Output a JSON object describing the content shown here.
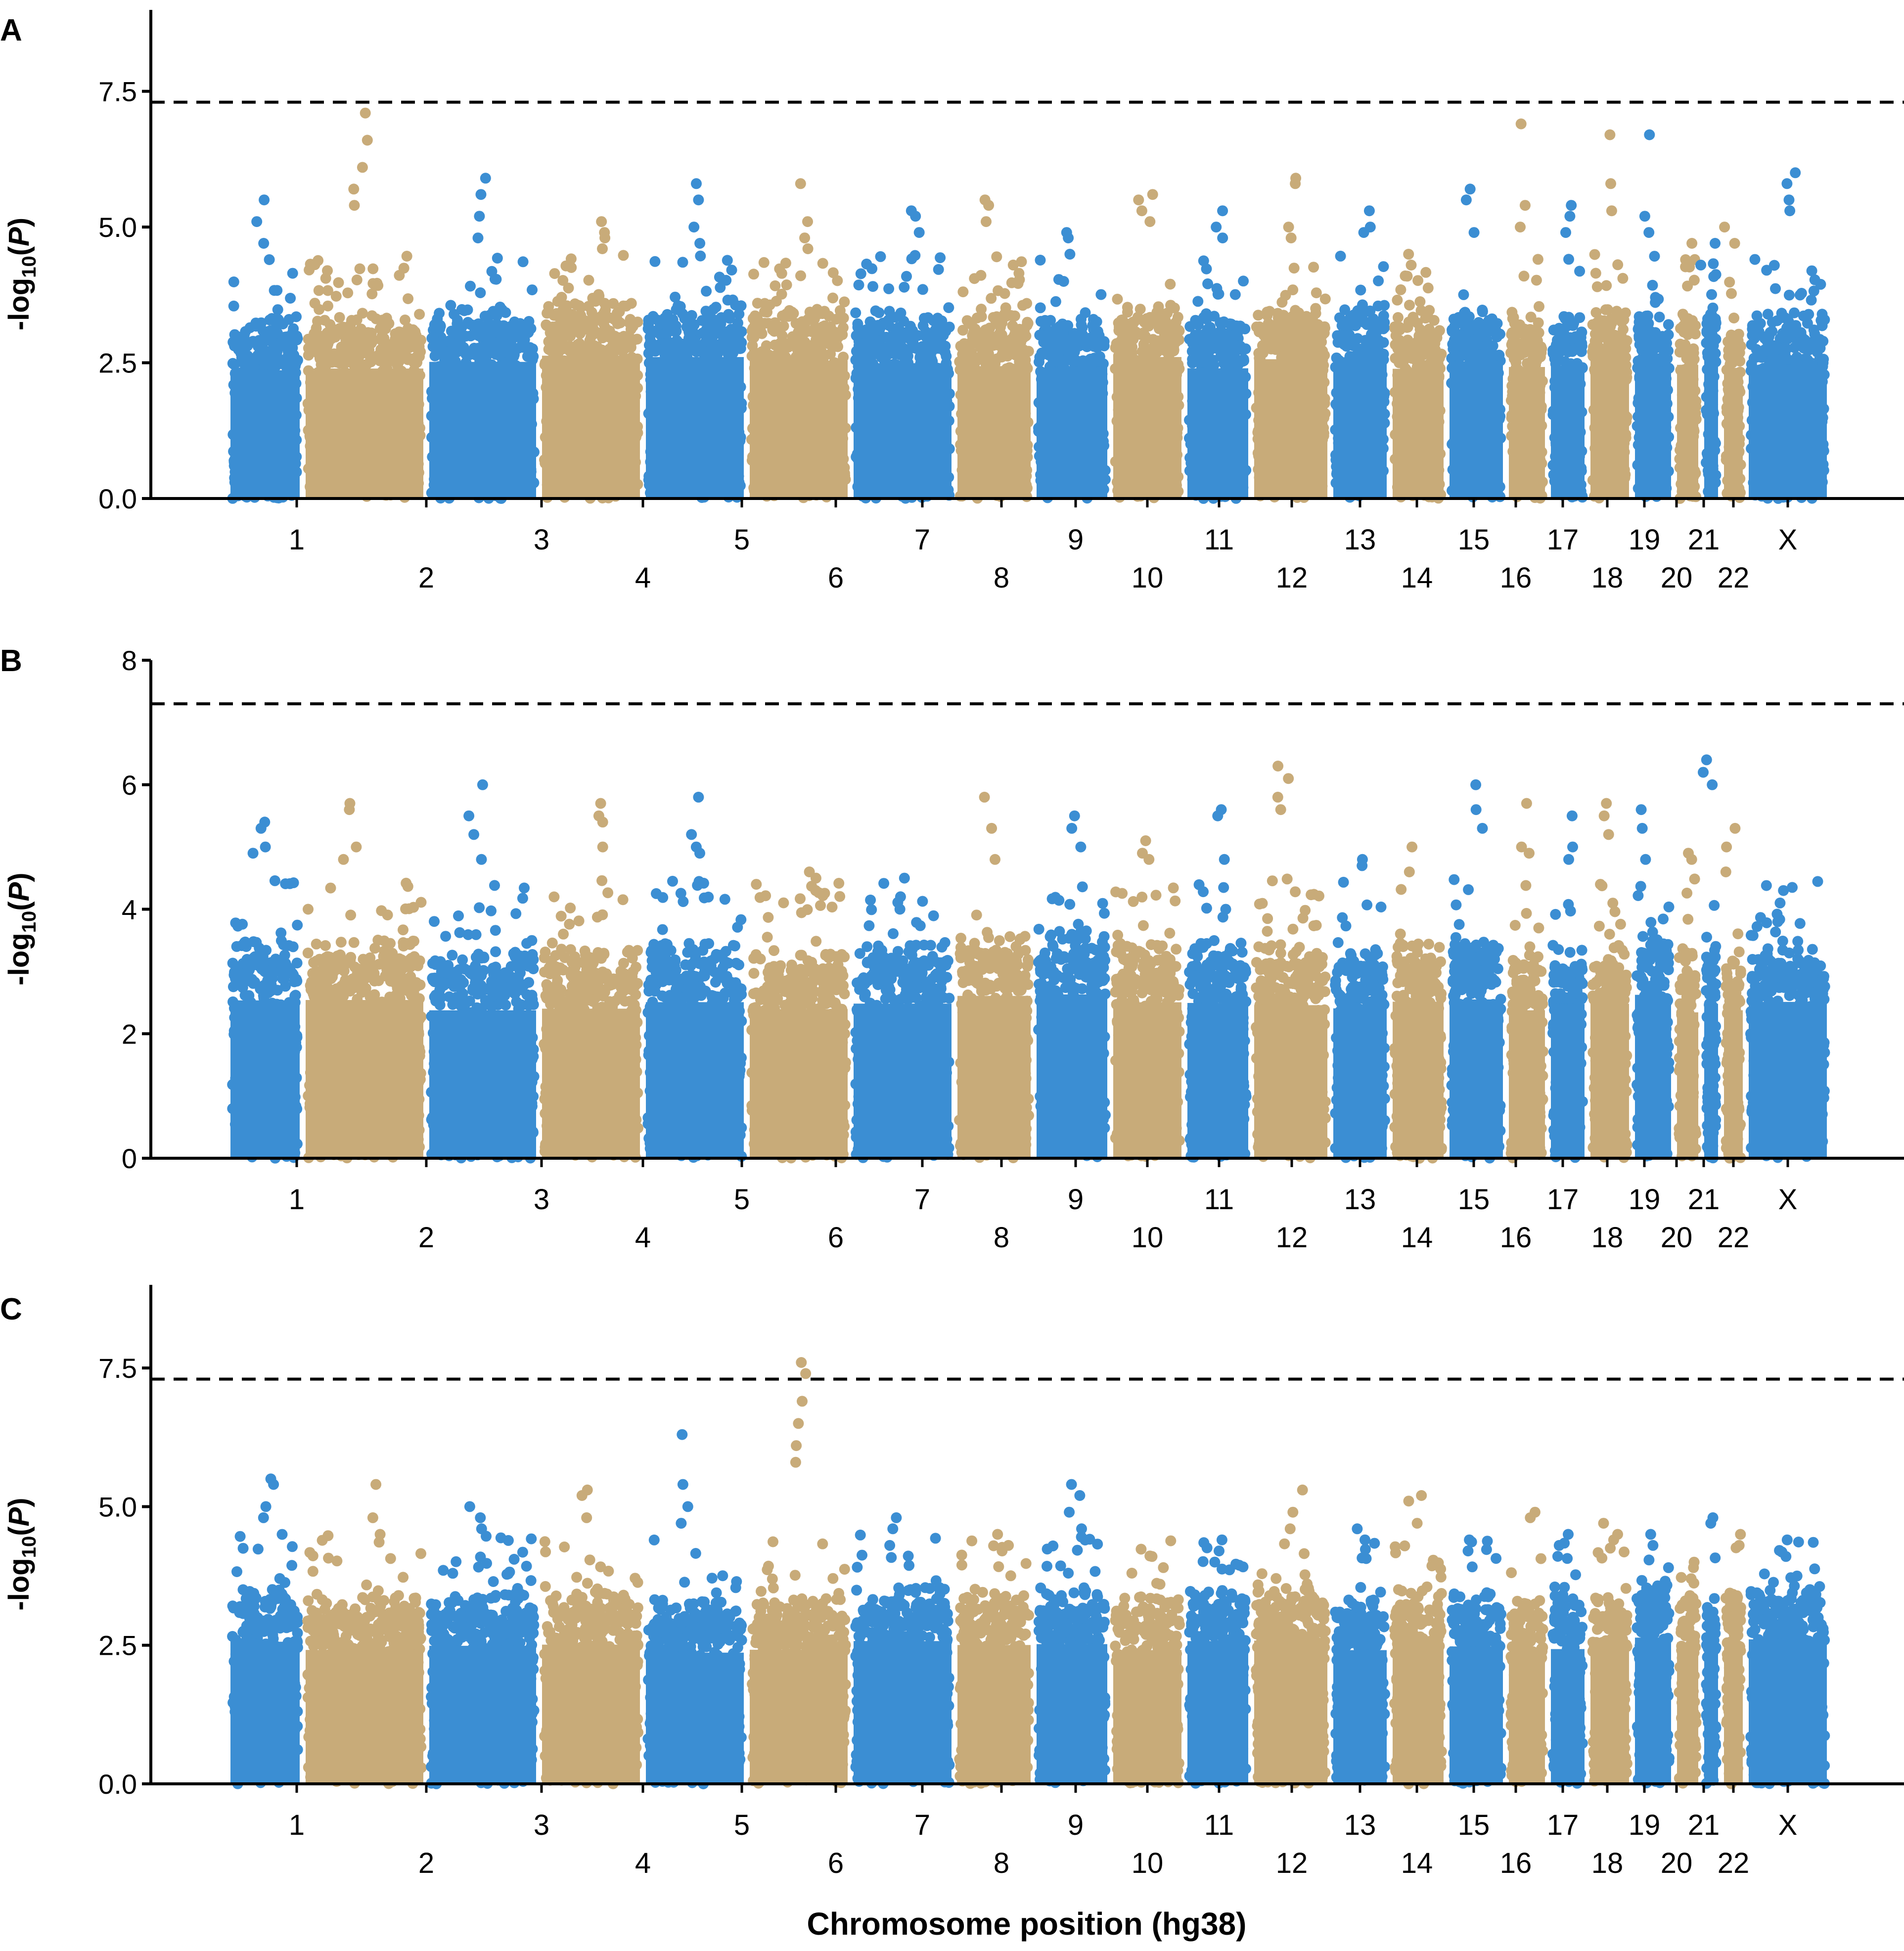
{
  "figure": {
    "xlabel": "Chromosome position (hg38)",
    "colors": {
      "blue": "#3b8ed3",
      "tan": "#c8ab79",
      "axis": "#000000",
      "threshold": "#000000"
    }
  },
  "chart_data": [
    {
      "type": "scatter",
      "panel": "A",
      "ylabel_main": "-log",
      "ylabel_sub": "10",
      "ylabel_paren_open": "(",
      "ylabel_var": "P",
      "ylabel_paren_close": ")",
      "ylim": [
        0,
        9
      ],
      "yticks": [
        "0.0",
        "2.5",
        "5.0",
        "7.5"
      ],
      "ytick_values": [
        0,
        2.5,
        5.0,
        7.5
      ],
      "threshold": 7.3,
      "chromosomes_top": [
        "1",
        "3",
        "5",
        "7",
        "9",
        "11",
        "13",
        "15",
        "17",
        "19",
        "21",
        "X"
      ],
      "chromosomes_bottom": [
        "2",
        "4",
        "6",
        "8",
        "10",
        "12",
        "14",
        "16",
        "18",
        "20",
        "22"
      ],
      "peaks": [
        {
          "chrom": "1",
          "values": [
            5.5,
            5.1,
            4.7,
            4.4
          ]
        },
        {
          "chrom": "2",
          "values": [
            7.1,
            6.6,
            6.1,
            5.7,
            5.4
          ]
        },
        {
          "chrom": "3",
          "values": [
            5.9,
            5.6,
            5.2,
            4.8
          ]
        },
        {
          "chrom": "4",
          "values": [
            5.1,
            4.9,
            4.8,
            4.6
          ]
        },
        {
          "chrom": "5",
          "values": [
            5.8,
            5.5,
            5.0,
            4.7
          ]
        },
        {
          "chrom": "6",
          "values": [
            5.8,
            5.1,
            4.8,
            4.6
          ]
        },
        {
          "chrom": "7",
          "values": [
            5.3,
            5.2,
            4.9
          ]
        },
        {
          "chrom": "8",
          "values": [
            5.5,
            5.4,
            5.1
          ]
        },
        {
          "chrom": "9",
          "values": [
            4.9,
            4.8,
            4.5
          ]
        },
        {
          "chrom": "10",
          "values": [
            5.6,
            5.5,
            5.3,
            5.1
          ]
        },
        {
          "chrom": "11",
          "values": [
            5.3,
            5.0,
            4.8
          ]
        },
        {
          "chrom": "12",
          "values": [
            5.9,
            5.8,
            5.0,
            4.8
          ]
        },
        {
          "chrom": "13",
          "values": [
            5.3,
            5.0,
            4.9
          ]
        },
        {
          "chrom": "14",
          "values": [
            4.5,
            4.3,
            4.1
          ]
        },
        {
          "chrom": "15",
          "values": [
            5.7,
            5.5,
            4.9
          ]
        },
        {
          "chrom": "16",
          "values": [
            6.9,
            5.4,
            5.0
          ]
        },
        {
          "chrom": "17",
          "values": [
            5.4,
            5.2,
            4.9
          ]
        },
        {
          "chrom": "18",
          "values": [
            6.7,
            5.8,
            5.3
          ]
        },
        {
          "chrom": "19",
          "values": [
            6.7,
            5.2,
            4.9
          ]
        },
        {
          "chrom": "20",
          "values": [
            4.7,
            4.4
          ]
        },
        {
          "chrom": "21",
          "values": [
            4.7,
            4.3
          ]
        },
        {
          "chrom": "22",
          "values": [
            5.0,
            4.7
          ]
        },
        {
          "chrom": "X",
          "values": [
            6.0,
            5.8,
            5.5,
            5.3
          ]
        }
      ]
    },
    {
      "type": "scatter",
      "panel": "B",
      "ylabel_main": "-log",
      "ylabel_sub": "10",
      "ylabel_paren_open": "(",
      "ylabel_var": "P",
      "ylabel_paren_close": ")",
      "ylim": [
        0,
        8
      ],
      "yticks": [
        "0",
        "2",
        "4",
        "6",
        "8"
      ],
      "ytick_values": [
        0,
        2,
        4,
        6,
        8
      ],
      "threshold": 7.3,
      "chromosomes_top": [
        "1",
        "3",
        "5",
        "7",
        "9",
        "11",
        "13",
        "15",
        "17",
        "19",
        "21",
        "X"
      ],
      "chromosomes_bottom": [
        "2",
        "4",
        "6",
        "8",
        "10",
        "12",
        "14",
        "16",
        "18",
        "20",
        "22"
      ],
      "peaks": [
        {
          "chrom": "1",
          "values": [
            5.4,
            5.3,
            5.0,
            4.9
          ]
        },
        {
          "chrom": "2",
          "values": [
            5.7,
            5.6,
            5.0,
            4.8
          ]
        },
        {
          "chrom": "3",
          "values": [
            6.0,
            5.5,
            5.2,
            4.8
          ]
        },
        {
          "chrom": "4",
          "values": [
            5.7,
            5.5,
            5.4,
            5.0
          ]
        },
        {
          "chrom": "5",
          "values": [
            5.8,
            5.2,
            5.0,
            4.9
          ]
        },
        {
          "chrom": "6",
          "values": [
            4.6,
            4.5,
            4.3
          ]
        },
        {
          "chrom": "7",
          "values": [
            4.5,
            4.2,
            4.0
          ]
        },
        {
          "chrom": "8",
          "values": [
            5.8,
            5.3,
            4.8
          ]
        },
        {
          "chrom": "9",
          "values": [
            5.5,
            5.3,
            5.0
          ]
        },
        {
          "chrom": "10",
          "values": [
            5.1,
            4.9,
            4.8
          ]
        },
        {
          "chrom": "11",
          "values": [
            5.6,
            5.5,
            4.8
          ]
        },
        {
          "chrom": "12",
          "values": [
            6.3,
            6.1,
            5.8,
            5.6
          ]
        },
        {
          "chrom": "13",
          "values": [
            4.8,
            4.7
          ]
        },
        {
          "chrom": "14",
          "values": [
            5.0,
            4.6
          ]
        },
        {
          "chrom": "15",
          "values": [
            6.0,
            5.6,
            5.3
          ]
        },
        {
          "chrom": "16",
          "values": [
            5.7,
            5.0,
            4.9
          ]
        },
        {
          "chrom": "17",
          "values": [
            5.5,
            5.0,
            4.8
          ]
        },
        {
          "chrom": "18",
          "values": [
            5.7,
            5.5,
            5.2
          ]
        },
        {
          "chrom": "19",
          "values": [
            5.6,
            5.3,
            4.8
          ]
        },
        {
          "chrom": "20",
          "values": [
            4.9,
            4.8
          ]
        },
        {
          "chrom": "21",
          "values": [
            6.4,
            6.2,
            6.0
          ]
        },
        {
          "chrom": "22",
          "values": [
            5.3,
            5.0,
            4.6
          ]
        },
        {
          "chrom": "X",
          "values": [
            4.3,
            4.1
          ]
        }
      ]
    },
    {
      "type": "scatter",
      "panel": "C",
      "ylabel_main": "-log",
      "ylabel_sub": "10",
      "ylabel_paren_open": "(",
      "ylabel_var": "P",
      "ylabel_paren_close": ")",
      "ylim": [
        0,
        9
      ],
      "yticks": [
        "0.0",
        "2.5",
        "5.0",
        "7.5"
      ],
      "ytick_values": [
        0,
        2.5,
        5.0,
        7.5
      ],
      "threshold": 7.3,
      "chromosomes_top": [
        "1",
        "3",
        "5",
        "7",
        "9",
        "11",
        "13",
        "15",
        "17",
        "19",
        "21",
        "X"
      ],
      "chromosomes_bottom": [
        "2",
        "4",
        "6",
        "8",
        "10",
        "12",
        "14",
        "16",
        "18",
        "20",
        "22"
      ],
      "peaks": [
        {
          "chrom": "1",
          "values": [
            5.5,
            5.4,
            5.0,
            4.8
          ]
        },
        {
          "chrom": "2",
          "values": [
            5.4,
            4.8,
            4.5
          ]
        },
        {
          "chrom": "3",
          "values": [
            5.0,
            4.8,
            4.6
          ]
        },
        {
          "chrom": "4",
          "values": [
            5.3,
            5.2,
            4.8
          ]
        },
        {
          "chrom": "5",
          "values": [
            6.3,
            5.4,
            5.0,
            4.7
          ]
        },
        {
          "chrom": "6",
          "values": [
            7.6,
            7.4,
            6.9,
            6.5,
            6.1,
            5.8
          ]
        },
        {
          "chrom": "7",
          "values": [
            4.8,
            4.6,
            4.3
          ]
        },
        {
          "chrom": "8",
          "values": [
            4.5,
            4.3,
            4.2
          ]
        },
        {
          "chrom": "9",
          "values": [
            5.4,
            5.2,
            4.9,
            4.6
          ]
        },
        {
          "chrom": "10",
          "values": [
            4.1,
            3.9,
            3.6
          ]
        },
        {
          "chrom": "11",
          "values": [
            4.4,
            4.2,
            4.0
          ]
        },
        {
          "chrom": "12",
          "values": [
            5.3,
            4.9,
            4.6
          ]
        },
        {
          "chrom": "13",
          "values": [
            4.6,
            4.4
          ]
        },
        {
          "chrom": "14",
          "values": [
            5.2,
            5.1,
            4.7
          ]
        },
        {
          "chrom": "15",
          "values": [
            4.4,
            4.2
          ]
        },
        {
          "chrom": "16",
          "values": [
            4.9,
            4.8
          ]
        },
        {
          "chrom": "17",
          "values": [
            4.5,
            4.3
          ]
        },
        {
          "chrom": "18",
          "values": [
            4.7,
            4.5,
            4.4
          ]
        },
        {
          "chrom": "19",
          "values": [
            4.5,
            4.3
          ]
        },
        {
          "chrom": "20",
          "values": [
            3.9,
            3.7
          ]
        },
        {
          "chrom": "21",
          "values": [
            4.8,
            4.7
          ]
        },
        {
          "chrom": "22",
          "values": [
            4.5,
            4.3
          ]
        },
        {
          "chrom": "X",
          "values": [
            4.4,
            4.1
          ]
        }
      ]
    }
  ]
}
